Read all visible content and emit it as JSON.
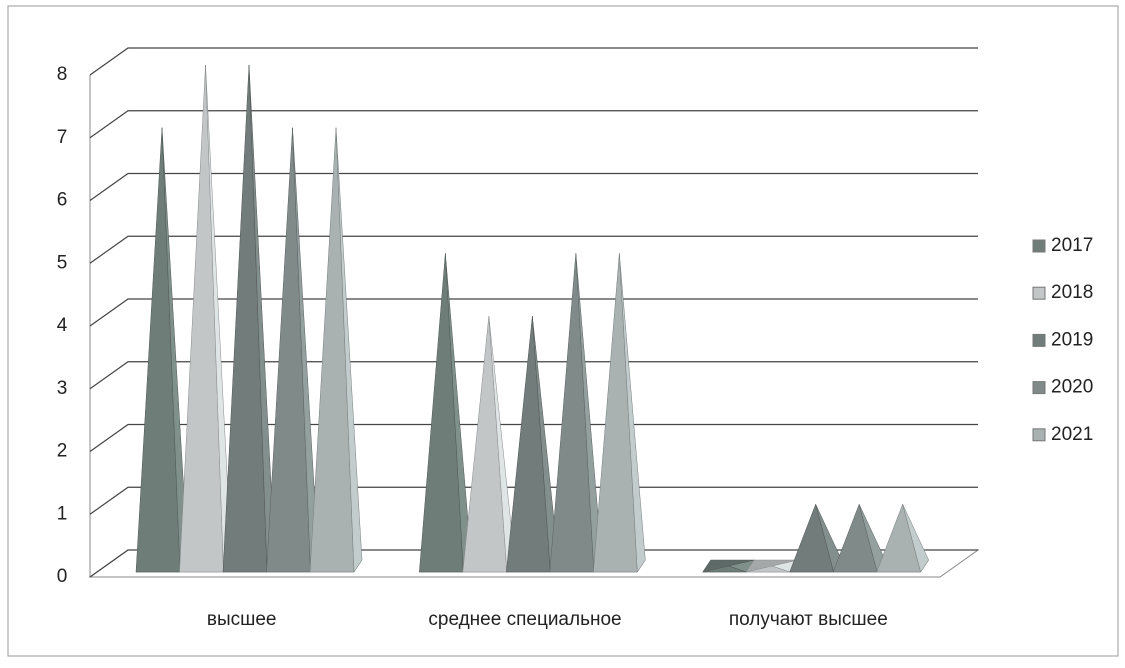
{
  "chart_data": {
    "type": "pyramid3d",
    "categories": [
      "высшее",
      "среднее специальное",
      "получают высшее"
    ],
    "series": [
      {
        "name": "2017",
        "color": "#6f7d79",
        "values": [
          7,
          5,
          0
        ]
      },
      {
        "name": "2018",
        "color": "#c2c6c6",
        "values": [
          8,
          4,
          0
        ]
      },
      {
        "name": "2019",
        "color": "#727c7a",
        "values": [
          8,
          4,
          1
        ]
      },
      {
        "name": "2020",
        "color": "#808b89",
        "values": [
          7,
          5,
          1
        ]
      },
      {
        "name": "2021",
        "color": "#a9b1b1",
        "values": [
          7,
          5,
          1
        ]
      }
    ],
    "ylim": [
      0,
      8
    ],
    "yticks": [
      0,
      1,
      2,
      3,
      4,
      5,
      6,
      7,
      8
    ],
    "grid": true,
    "legend": "right"
  }
}
